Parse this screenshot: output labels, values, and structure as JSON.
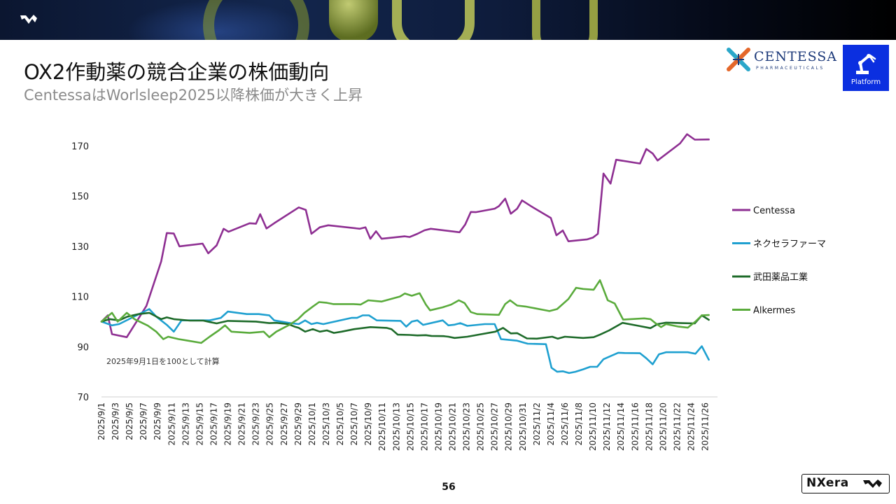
{
  "header": {
    "title": "OX2作動薬の競合企業の株価動向",
    "subtitle": "CentessaはWorlsleep2025以降株価が大きく上昇"
  },
  "logos": {
    "centessa_name": "CENTESSA",
    "centessa_sub": "PHARMACEUTICALS",
    "platform_label": "Platform",
    "footer_brand": "NXera"
  },
  "page_number": "56",
  "colors": {
    "Centessa": "#8e2f92",
    "ネクセラファーマ": "#1fa0d0",
    "武田薬品工業": "#1e6b2a",
    "Alkermes": "#5aab3c"
  },
  "chart_data": {
    "type": "line",
    "title": "",
    "xlabel": "",
    "ylabel": "",
    "ylim": [
      70,
      180
    ],
    "yticks": [
      70,
      90,
      110,
      130,
      150,
      170
    ],
    "note": "2025年9月1日を100として計算",
    "legend_position": "right",
    "x_ticks": [
      "2025/9/1",
      "2025/9/3",
      "2025/9/5",
      "2025/9/7",
      "2025/9/9",
      "2025/9/11",
      "2025/9/13",
      "2025/9/15",
      "2025/9/17",
      "2025/9/19",
      "2025/9/21",
      "2025/9/23",
      "2025/9/25",
      "2025/9/27",
      "2025/9/29",
      "2025/10/1",
      "2025/10/3",
      "2025/10/5",
      "2025/10/7",
      "2025/10/9",
      "2025/10/11",
      "2025/10/13",
      "2025/10/15",
      "2025/10/17",
      "2025/10/19",
      "2025/10/21",
      "2025/10/23",
      "2025/10/25",
      "2025/10/27",
      "2025/10/29",
      "2025/10/31",
      "2025/11/2",
      "2025/11/4",
      "2025/11/6",
      "2025/11/8",
      "2025/11/10",
      "2025/11/12",
      "2025/11/14",
      "2025/11/16",
      "2025/11/18",
      "2025/11/20",
      "2025/11/22",
      "2025/11/24",
      "2025/11/26"
    ],
    "series": [
      {
        "name": "Centessa",
        "points": [
          [
            0,
            100
          ],
          [
            0.9,
            102.5
          ],
          [
            1.5,
            95
          ],
          [
            3.6,
            93.8
          ],
          [
            6.4,
            106.3
          ],
          [
            8.5,
            124
          ],
          [
            9.3,
            135.3
          ],
          [
            10.3,
            135.1
          ],
          [
            11.1,
            130
          ],
          [
            14.4,
            131.1
          ],
          [
            15.2,
            127.2
          ],
          [
            16.4,
            130.4
          ],
          [
            17.4,
            137
          ],
          [
            18.1,
            135.8
          ],
          [
            21.1,
            139.2
          ],
          [
            22,
            139
          ],
          [
            22.6,
            142.8
          ],
          [
            23.5,
            137.1
          ],
          [
            24.6,
            139.2
          ],
          [
            28.1,
            145.5
          ],
          [
            29.1,
            144.5
          ],
          [
            29.9,
            135
          ],
          [
            31.1,
            137.6
          ],
          [
            32.3,
            138.4
          ],
          [
            36.8,
            137
          ],
          [
            37.6,
            137.6
          ],
          [
            38.3,
            133
          ],
          [
            39.1,
            136
          ],
          [
            39.9,
            133
          ],
          [
            43.2,
            134
          ],
          [
            43.9,
            133.7
          ],
          [
            45,
            135
          ],
          [
            46,
            136.4
          ],
          [
            46.9,
            137
          ],
          [
            51,
            135.6
          ],
          [
            51.8,
            138.7
          ],
          [
            52.6,
            143.7
          ],
          [
            53.3,
            143.6
          ],
          [
            56,
            145
          ],
          [
            56.6,
            146
          ],
          [
            57.5,
            149
          ],
          [
            58.3,
            143
          ],
          [
            59.2,
            145
          ],
          [
            59.9,
            148.3
          ],
          [
            61.3,
            145.8
          ],
          [
            64,
            141.3
          ],
          [
            64.8,
            134.4
          ],
          [
            65.7,
            136.3
          ],
          [
            66.5,
            132
          ],
          [
            69.2,
            132.8
          ],
          [
            70,
            133.5
          ],
          [
            70.7,
            135
          ],
          [
            71.5,
            159
          ],
          [
            72.5,
            155
          ],
          [
            73.3,
            164.5
          ],
          [
            76.7,
            163
          ],
          [
            77.6,
            168.8
          ],
          [
            78.5,
            167
          ],
          [
            79.2,
            164.2
          ],
          [
            82.4,
            171
          ],
          [
            83.4,
            174.7
          ],
          [
            84.5,
            172.5
          ],
          [
            86.5,
            172.6
          ]
        ]
      },
      {
        "name": "ネクセラファーマ",
        "points": [
          [
            0,
            100
          ],
          [
            1.5,
            98.5
          ],
          [
            2.5,
            99
          ],
          [
            6.8,
            105
          ],
          [
            7.8,
            102
          ],
          [
            9.3,
            98.7
          ],
          [
            10.3,
            96
          ],
          [
            11.4,
            100.5
          ],
          [
            15.4,
            100.5
          ],
          [
            17,
            101.5
          ],
          [
            18,
            104
          ],
          [
            20.7,
            103
          ],
          [
            22.4,
            103
          ],
          [
            23.9,
            102.5
          ],
          [
            24.6,
            100.5
          ],
          [
            26.6,
            99.5
          ],
          [
            28.1,
            99
          ],
          [
            29,
            100.5
          ],
          [
            29.9,
            99
          ],
          [
            30.7,
            99.5
          ],
          [
            31.6,
            99
          ],
          [
            35.6,
            101.5
          ],
          [
            36.4,
            101.5
          ],
          [
            37.2,
            102.5
          ],
          [
            38.1,
            102.5
          ],
          [
            39.2,
            100.5
          ],
          [
            42.6,
            100.3
          ],
          [
            43.4,
            98
          ],
          [
            44.2,
            100
          ],
          [
            45,
            100.5
          ],
          [
            45.8,
            98.7
          ],
          [
            48.6,
            100.5
          ],
          [
            49.4,
            98.5
          ],
          [
            50.3,
            98.8
          ],
          [
            51.1,
            99.4
          ],
          [
            52.1,
            98.3
          ],
          [
            54.6,
            99
          ],
          [
            56,
            99
          ],
          [
            56.9,
            93
          ],
          [
            57.8,
            92.8
          ],
          [
            59.2,
            92.4
          ],
          [
            59.9,
            91.8
          ],
          [
            60.7,
            91.2
          ],
          [
            63.3,
            91
          ],
          [
            64.1,
            81.6
          ],
          [
            64.9,
            80
          ],
          [
            65.7,
            80.2
          ],
          [
            66.6,
            79.5
          ],
          [
            67.5,
            80
          ],
          [
            68.6,
            81
          ],
          [
            69.6,
            82
          ],
          [
            70.6,
            82
          ],
          [
            71.5,
            85
          ],
          [
            73.6,
            87.6
          ],
          [
            74.5,
            87.5
          ],
          [
            76.7,
            87.4
          ],
          [
            77.6,
            85.4
          ],
          [
            78.5,
            83
          ],
          [
            79.4,
            87
          ],
          [
            80.4,
            87.8
          ],
          [
            83.5,
            87.8
          ],
          [
            84.6,
            87.2
          ],
          [
            85.5,
            90.2
          ],
          [
            86.5,
            84.8
          ]
        ]
      },
      {
        "name": "武田薬品工業",
        "points": [
          [
            0,
            100
          ],
          [
            1.2,
            101
          ],
          [
            2.5,
            100.5
          ],
          [
            3.7,
            102
          ],
          [
            5.3,
            103
          ],
          [
            6.8,
            103.5
          ],
          [
            8.5,
            101
          ],
          [
            9.3,
            101.7
          ],
          [
            10.3,
            101
          ],
          [
            12.6,
            100.4
          ],
          [
            14.5,
            100.4
          ],
          [
            15.5,
            99.8
          ],
          [
            16.4,
            99.3
          ],
          [
            18,
            100.3
          ],
          [
            22,
            100
          ],
          [
            23.9,
            99.4
          ],
          [
            24.9,
            99.5
          ],
          [
            26.6,
            99
          ],
          [
            27.5,
            98
          ],
          [
            28.1,
            97.5
          ],
          [
            29,
            96
          ],
          [
            30.1,
            97
          ],
          [
            31.1,
            96
          ],
          [
            32.1,
            96.5
          ],
          [
            33.1,
            95.5
          ],
          [
            34.2,
            96
          ],
          [
            36,
            97
          ],
          [
            38.3,
            97.8
          ],
          [
            40.6,
            97.5
          ],
          [
            41.3,
            97
          ],
          [
            42.2,
            94.8
          ],
          [
            43.9,
            94.7
          ],
          [
            45,
            94.5
          ],
          [
            46.2,
            94.6
          ],
          [
            47,
            94.3
          ],
          [
            48.7,
            94.2
          ],
          [
            49.4,
            94
          ],
          [
            50.3,
            93.5
          ],
          [
            52.1,
            94
          ],
          [
            53.7,
            94.8
          ],
          [
            56.1,
            96
          ],
          [
            57.2,
            97.5
          ],
          [
            58.3,
            95.3
          ],
          [
            59.2,
            95.4
          ],
          [
            60.6,
            93.3
          ],
          [
            62,
            93.2
          ],
          [
            64.2,
            94
          ],
          [
            65,
            93.2
          ],
          [
            66,
            94
          ],
          [
            68.6,
            93.5
          ],
          [
            70.1,
            93.8
          ],
          [
            71,
            94.8
          ],
          [
            72.3,
            96.5
          ],
          [
            74.2,
            99.5
          ],
          [
            76.5,
            98.3
          ],
          [
            78.2,
            97.4
          ],
          [
            79.2,
            99
          ],
          [
            80.4,
            99.6
          ],
          [
            81.5,
            99.5
          ],
          [
            82.6,
            99.4
          ],
          [
            84.5,
            99.3
          ],
          [
            85.5,
            102.5
          ],
          [
            86.5,
            100.7
          ]
        ]
      },
      {
        "name": "Alkermes",
        "points": [
          [
            0,
            100
          ],
          [
            1.5,
            103.5
          ],
          [
            2.3,
            100
          ],
          [
            3.6,
            103.5
          ],
          [
            4.7,
            101
          ],
          [
            6.6,
            98.4
          ],
          [
            7.8,
            96
          ],
          [
            8.8,
            93
          ],
          [
            9.5,
            94
          ],
          [
            11,
            93
          ],
          [
            12.1,
            92.5
          ],
          [
            14.2,
            91.5
          ],
          [
            15.4,
            94
          ],
          [
            16.7,
            96.5
          ],
          [
            17.6,
            98.5
          ],
          [
            18.5,
            96
          ],
          [
            21.1,
            95.5
          ],
          [
            23.1,
            96
          ],
          [
            23.9,
            93.8
          ],
          [
            24.9,
            96
          ],
          [
            26.8,
            98.8
          ],
          [
            28,
            101
          ],
          [
            28.9,
            103.5
          ],
          [
            30.1,
            106
          ],
          [
            31,
            107.8
          ],
          [
            32.1,
            107.5
          ],
          [
            33,
            107
          ],
          [
            35.9,
            107
          ],
          [
            36.9,
            106.8
          ],
          [
            38,
            108.5
          ],
          [
            39.9,
            108
          ],
          [
            42.5,
            110
          ],
          [
            43.2,
            111.2
          ],
          [
            44.2,
            110.3
          ],
          [
            45.3,
            111.3
          ],
          [
            46.2,
            106.8
          ],
          [
            46.8,
            104.5
          ],
          [
            48.6,
            105.7
          ],
          [
            49.8,
            106.8
          ],
          [
            50.9,
            108.5
          ],
          [
            51.7,
            107.4
          ],
          [
            52.6,
            103.8
          ],
          [
            53.5,
            103
          ],
          [
            55.6,
            102.8
          ],
          [
            56.6,
            102.7
          ],
          [
            57.5,
            107
          ],
          [
            58.2,
            108.5
          ],
          [
            59.2,
            106.4
          ],
          [
            60.4,
            106
          ],
          [
            62.9,
            104.7
          ],
          [
            63.8,
            104.2
          ],
          [
            64.9,
            105
          ],
          [
            66.5,
            109
          ],
          [
            67.6,
            113.5
          ],
          [
            68.6,
            113
          ],
          [
            70.1,
            112.7
          ],
          [
            71,
            116.5
          ],
          [
            72.1,
            108.5
          ],
          [
            73.1,
            107.2
          ],
          [
            74.3,
            100.8
          ],
          [
            77.3,
            101.3
          ],
          [
            78.2,
            101
          ],
          [
            78.8,
            99.6
          ],
          [
            79.7,
            97.8
          ],
          [
            80.4,
            99
          ],
          [
            82.2,
            98
          ],
          [
            83.5,
            97.6
          ],
          [
            84.6,
            100
          ],
          [
            85.5,
            102.5
          ],
          [
            86.5,
            102.6
          ]
        ]
      }
    ]
  }
}
